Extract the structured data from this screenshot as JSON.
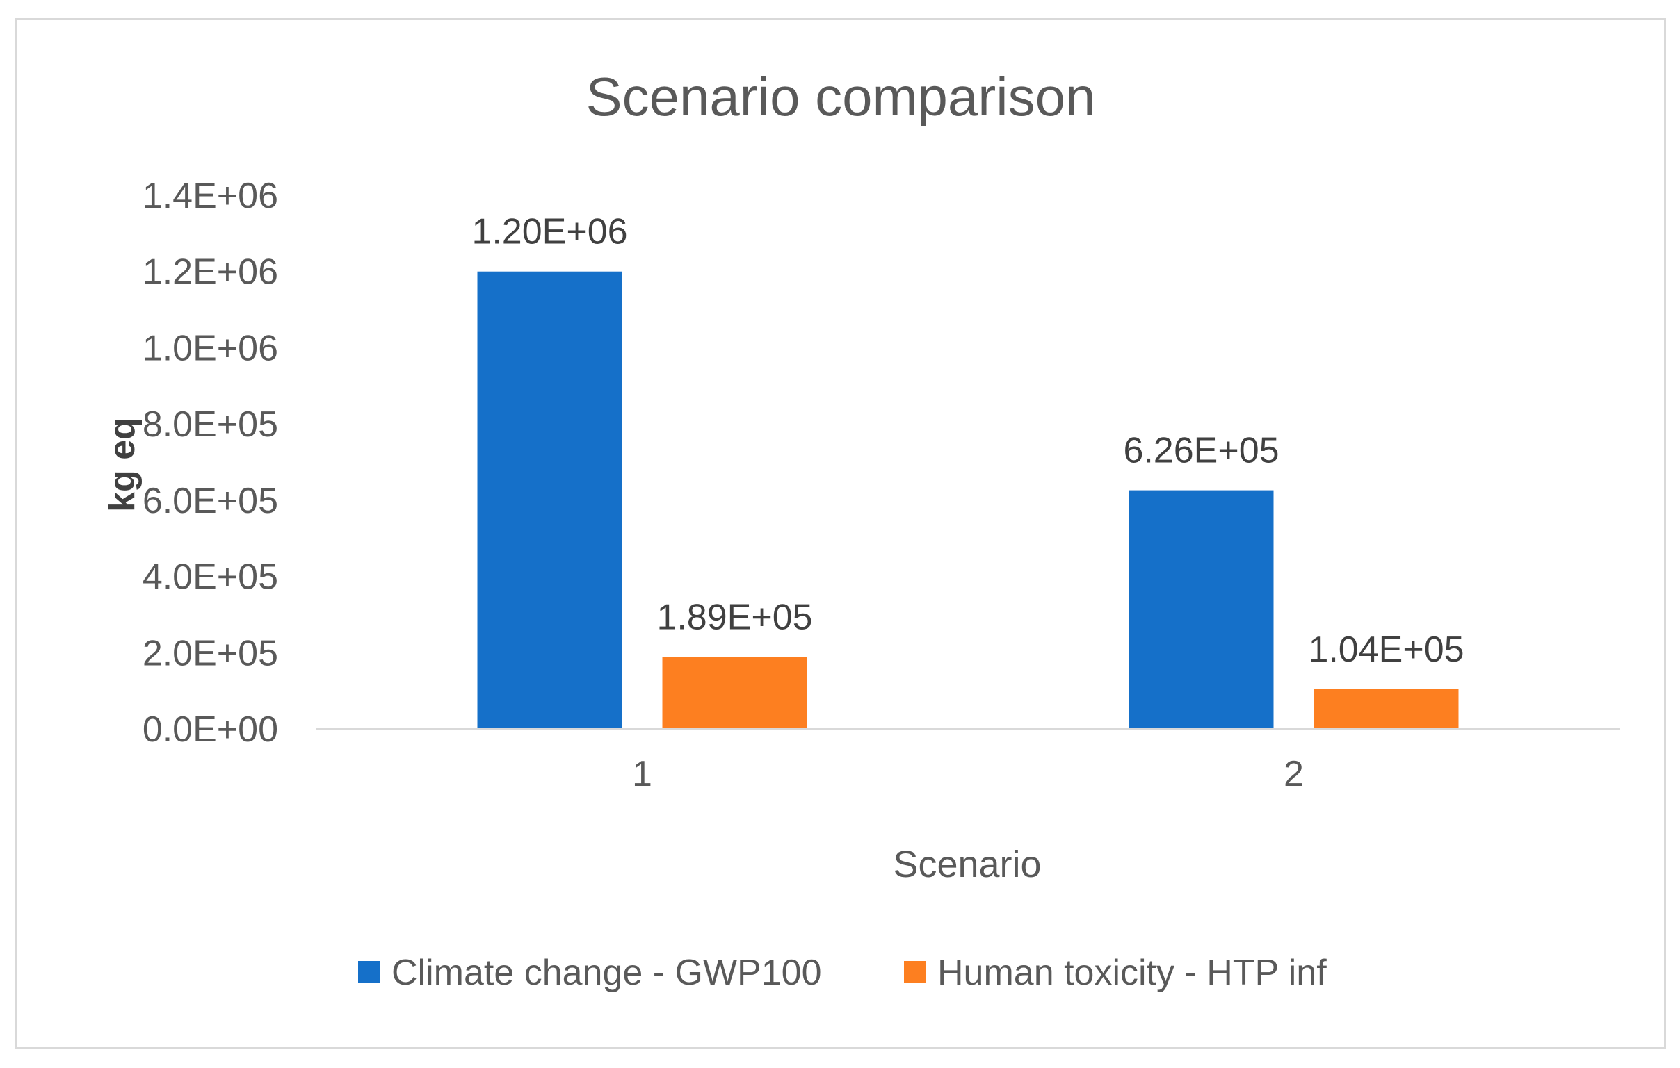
{
  "chart_data": {
    "type": "bar",
    "title": "Scenario comparison",
    "xlabel": "Scenario",
    "ylabel": "kg eq",
    "categories": [
      "1",
      "2"
    ],
    "ylim": [
      0,
      1400000
    ],
    "yticks": [
      {
        "value": 0,
        "label": "0.0E+00"
      },
      {
        "value": 200000,
        "label": "2.0E+05"
      },
      {
        "value": 400000,
        "label": "4.0E+05"
      },
      {
        "value": 600000,
        "label": "6.0E+05"
      },
      {
        "value": 800000,
        "label": "8.0E+05"
      },
      {
        "value": 1000000,
        "label": "1.0E+06"
      },
      {
        "value": 1200000,
        "label": "1.2E+06"
      },
      {
        "value": 1400000,
        "label": "1.4E+06"
      }
    ],
    "series": [
      {
        "name": "Climate change - GWP100",
        "color": "#1570c9",
        "values": [
          1200000,
          626000
        ],
        "labels": [
          "1.20E+06",
          "6.26E+05"
        ]
      },
      {
        "name": "Human toxicity - HTP inf",
        "color": "#fd7f20",
        "values": [
          189000,
          104000
        ],
        "labels": [
          "1.89E+05",
          "1.04E+05"
        ]
      }
    ],
    "grid": false,
    "legend_position": "bottom"
  }
}
